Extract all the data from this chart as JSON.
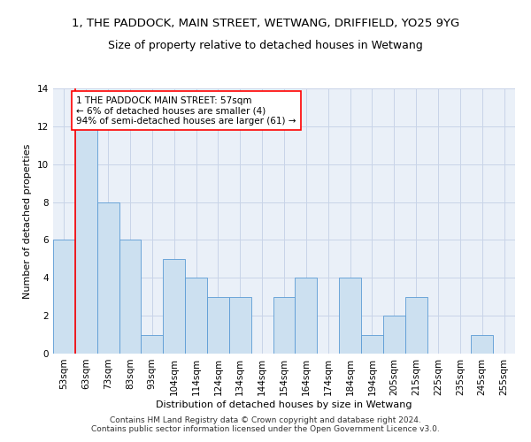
{
  "title": "1, THE PADDOCK, MAIN STREET, WETWANG, DRIFFIELD, YO25 9YG",
  "subtitle": "Size of property relative to detached houses in Wetwang",
  "xlabel": "Distribution of detached houses by size in Wetwang",
  "ylabel": "Number of detached properties",
  "categories": [
    "53sqm",
    "63sqm",
    "73sqm",
    "83sqm",
    "93sqm",
    "104sqm",
    "114sqm",
    "124sqm",
    "134sqm",
    "144sqm",
    "154sqm",
    "164sqm",
    "174sqm",
    "184sqm",
    "194sqm",
    "205sqm",
    "215sqm",
    "225sqm",
    "235sqm",
    "245sqm",
    "255sqm"
  ],
  "values": [
    6,
    12,
    8,
    6,
    1,
    5,
    4,
    3,
    3,
    0,
    3,
    4,
    0,
    4,
    1,
    2,
    3,
    0,
    0,
    1,
    0
  ],
  "bar_color": "#cce0f0",
  "bar_edge_color": "#5b9bd5",
  "annotation_text": "1 THE PADDOCK MAIN STREET: 57sqm\n← 6% of detached houses are smaller (4)\n94% of semi-detached houses are larger (61) →",
  "annotation_box_color": "white",
  "annotation_box_edge_color": "red",
  "vline_color": "red",
  "vline_x": 0.5,
  "ylim": [
    0,
    14
  ],
  "yticks": [
    0,
    2,
    4,
    6,
    8,
    10,
    12,
    14
  ],
  "footer": "Contains HM Land Registry data © Crown copyright and database right 2024.\nContains public sector information licensed under the Open Government Licence v3.0.",
  "title_fontsize": 9.5,
  "subtitle_fontsize": 9,
  "axis_label_fontsize": 8,
  "tick_fontsize": 7.5,
  "annotation_fontsize": 7.5,
  "footer_fontsize": 6.5,
  "grid_color": "#c8d4e8",
  "background_color": "#eaf0f8"
}
